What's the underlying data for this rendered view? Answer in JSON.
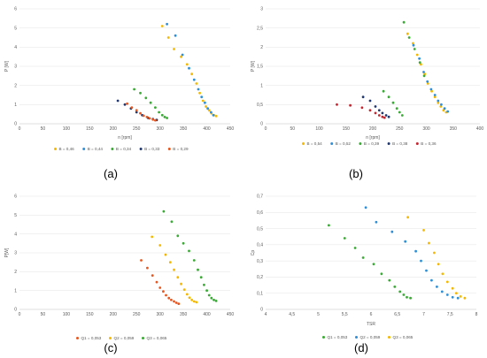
{
  "chart_data": [
    {
      "type": "scatter",
      "panel_label": "(a)",
      "xlabel": "n [rpm]",
      "ylabel": "P [W]",
      "xlim": [
        0,
        450
      ],
      "ylim": [
        0,
        6
      ],
      "x_ticks": [
        "0",
        "50",
        "100",
        "150",
        "200",
        "250",
        "300",
        "350",
        "400",
        "450"
      ],
      "y_ticks": [
        "0",
        "1",
        "2",
        "3",
        "4",
        "5",
        "6"
      ],
      "grid": "horizontal",
      "legend": "bottom",
      "series": [
        {
          "name": "B = 0,46",
          "color": "#f5b800",
          "points": [
            [
              305,
              5.1
            ],
            [
              318,
              4.5
            ],
            [
              330,
              3.9
            ],
            [
              345,
              3.5
            ],
            [
              358,
              3.1
            ],
            [
              368,
              2.6
            ],
            [
              378,
              2.1
            ],
            [
              385,
              1.6
            ],
            [
              392,
              1.2
            ],
            [
              398,
              0.9
            ],
            [
              405,
              0.7
            ],
            [
              410,
              0.55
            ],
            [
              415,
              0.45
            ],
            [
              420,
              0.4
            ]
          ]
        },
        {
          "name": "B = 0,44",
          "color": "#2e8fd6",
          "points": [
            [
              315,
              5.2
            ],
            [
              333,
              4.6
            ],
            [
              348,
              3.6
            ],
            [
              362,
              2.9
            ],
            [
              373,
              2.3
            ],
            [
              382,
              1.8
            ],
            [
              389,
              1.4
            ],
            [
              396,
              1.1
            ],
            [
              402,
              0.8
            ],
            [
              409,
              0.6
            ],
            [
              414,
              0.45
            ]
          ]
        },
        {
          "name": "B = 0,34",
          "color": "#3aa935",
          "points": [
            [
              245,
              1.8
            ],
            [
              258,
              1.6
            ],
            [
              270,
              1.35
            ],
            [
              280,
              1.1
            ],
            [
              290,
              0.85
            ],
            [
              298,
              0.6
            ],
            [
              305,
              0.45
            ],
            [
              310,
              0.35
            ],
            [
              315,
              0.3
            ]
          ]
        },
        {
          "name": "B = 0,33",
          "color": "#20386f",
          "points": [
            [
              210,
              1.2
            ],
            [
              225,
              1.0
            ],
            [
              238,
              0.8
            ],
            [
              250,
              0.6
            ],
            [
              262,
              0.45
            ],
            [
              275,
              0.3
            ],
            [
              285,
              0.25
            ],
            [
              293,
              0.2
            ]
          ]
        },
        {
          "name": "B = 0,29",
          "color": "#e8561f",
          "points": [
            [
              230,
              1.05
            ],
            [
              240,
              0.85
            ],
            [
              250,
              0.7
            ],
            [
              258,
              0.55
            ],
            [
              265,
              0.42
            ],
            [
              272,
              0.35
            ],
            [
              278,
              0.28
            ],
            [
              285,
              0.22
            ],
            [
              290,
              0.18
            ]
          ]
        }
      ]
    },
    {
      "type": "scatter",
      "panel_label": "(b)",
      "xlabel": "n [rpm]",
      "ylabel": "P [W]",
      "xlim": [
        0,
        400
      ],
      "ylim": [
        0,
        3
      ],
      "x_ticks": [
        "0",
        "50",
        "100",
        "150",
        "200",
        "250",
        "300",
        "350",
        "400"
      ],
      "y_ticks": [
        "0",
        "0,5",
        "1",
        "1,5",
        "2",
        "2,5",
        "3"
      ],
      "grid": "horizontal",
      "legend": "bottom",
      "series": [
        {
          "name": "B = 0,54",
          "color": "#f5b800",
          "points": [
            [
              265,
              2.35
            ],
            [
              275,
              2.1
            ],
            [
              283,
              1.8
            ],
            [
              290,
              1.55
            ],
            [
              297,
              1.3
            ],
            [
              303,
              1.05
            ],
            [
              310,
              0.85
            ],
            [
              316,
              0.7
            ],
            [
              322,
              0.55
            ],
            [
              327,
              0.45
            ],
            [
              332,
              0.35
            ],
            [
              337,
              0.3
            ]
          ]
        },
        {
          "name": "B = 0,52",
          "color": "#2e8fd6",
          "points": [
            [
              276,
              2.05
            ],
            [
              287,
              1.7
            ],
            [
              295,
              1.35
            ],
            [
              302,
              1.1
            ],
            [
              309,
              0.9
            ],
            [
              316,
              0.75
            ],
            [
              322,
              0.6
            ],
            [
              328,
              0.5
            ],
            [
              334,
              0.4
            ],
            [
              340,
              0.32
            ]
          ]
        },
        {
          "name": "B = 0,39",
          "color": "#3aa935",
          "points": [
            [
              258,
              2.65
            ],
            [
              268,
              2.25
            ],
            [
              278,
              1.95
            ],
            [
              288,
              1.6
            ],
            [
              296,
              1.25
            ],
            [
              220,
              0.85
            ],
            [
              230,
              0.7
            ],
            [
              238,
              0.55
            ],
            [
              245,
              0.4
            ],
            [
              250,
              0.3
            ],
            [
              255,
              0.22
            ]
          ]
        },
        {
          "name": "B = 0,38",
          "color": "#20386f",
          "points": [
            [
              182,
              0.7
            ],
            [
              195,
              0.6
            ],
            [
              205,
              0.45
            ],
            [
              212,
              0.35
            ],
            [
              218,
              0.28
            ],
            [
              225,
              0.22
            ],
            [
              230,
              0.18
            ]
          ]
        },
        {
          "name": "B = 0,36",
          "color": "#c3262e",
          "points": [
            [
              133,
              0.5
            ],
            [
              158,
              0.48
            ],
            [
              180,
              0.42
            ],
            [
              195,
              0.35
            ],
            [
              205,
              0.28
            ],
            [
              212,
              0.22
            ],
            [
              218,
              0.18
            ],
            [
              222,
              0.16
            ]
          ]
        }
      ]
    },
    {
      "type": "scatter",
      "panel_label": "(c)",
      "xlabel": "",
      "ylabel": "P[W]",
      "xlim": [
        0,
        450
      ],
      "ylim": [
        0,
        6
      ],
      "x_ticks": [
        "0",
        "50",
        "100",
        "150",
        "200",
        "250",
        "300",
        "350",
        "400",
        "450"
      ],
      "y_ticks": [
        "0",
        "1",
        "2",
        "3",
        "4",
        "5",
        "6"
      ],
      "grid": "horizontal",
      "legend": "bottom",
      "series": [
        {
          "name": "Q1 = 0,053",
          "color": "#e8561f",
          "points": [
            [
              260,
              2.6
            ],
            [
              273,
              2.2
            ],
            [
              284,
              1.8
            ],
            [
              293,
              1.45
            ],
            [
              300,
              1.15
            ],
            [
              307,
              0.95
            ],
            [
              313,
              0.75
            ],
            [
              319,
              0.6
            ],
            [
              324,
              0.5
            ],
            [
              330,
              0.42
            ],
            [
              335,
              0.35
            ],
            [
              340,
              0.3
            ]
          ]
        },
        {
          "name": "Q2 = 0,059",
          "color": "#f5b800",
          "points": [
            [
              283,
              3.85
            ],
            [
              300,
              3.4
            ],
            [
              312,
              2.9
            ],
            [
              322,
              2.5
            ],
            [
              330,
              2.1
            ],
            [
              338,
              1.7
            ],
            [
              345,
              1.35
            ],
            [
              352,
              1.05
            ],
            [
              358,
              0.8
            ],
            [
              363,
              0.62
            ],
            [
              368,
              0.5
            ],
            [
              373,
              0.42
            ],
            [
              378,
              0.38
            ]
          ]
        },
        {
          "name": "Q3 = 0,065",
          "color": "#3aa935",
          "points": [
            [
              308,
              5.2
            ],
            [
              325,
              4.65
            ],
            [
              338,
              3.9
            ],
            [
              350,
              3.5
            ],
            [
              362,
              3.1
            ],
            [
              373,
              2.6
            ],
            [
              381,
              2.1
            ],
            [
              388,
              1.7
            ],
            [
              394,
              1.3
            ],
            [
              400,
              1.0
            ],
            [
              405,
              0.75
            ],
            [
              410,
              0.6
            ],
            [
              415,
              0.5
            ],
            [
              420,
              0.45
            ]
          ]
        }
      ]
    },
    {
      "type": "scatter",
      "panel_label": "(d)",
      "xlabel": "TSR",
      "ylabel": "Cp",
      "xlim": [
        4,
        8
      ],
      "ylim": [
        0,
        0.7
      ],
      "x_ticks": [
        "4",
        "4,5",
        "5",
        "5,5",
        "6",
        "6,5",
        "7",
        "7,5",
        "8"
      ],
      "y_ticks": [
        "0",
        "0,1",
        "0,2",
        "0,3",
        "0,4",
        "0,5",
        "0,6",
        "0,7"
      ],
      "grid": "horizontal",
      "legend": "bottom",
      "series": [
        {
          "name": "Q1 = 0,053",
          "color": "#3aa935",
          "points": [
            [
              5.2,
              0.52
            ],
            [
              5.5,
              0.44
            ],
            [
              5.7,
              0.38
            ],
            [
              5.85,
              0.32
            ],
            [
              6.05,
              0.28
            ],
            [
              6.2,
              0.22
            ],
            [
              6.35,
              0.18
            ],
            [
              6.45,
              0.14
            ],
            [
              6.55,
              0.11
            ],
            [
              6.62,
              0.09
            ],
            [
              6.68,
              0.075
            ],
            [
              6.75,
              0.07
            ]
          ]
        },
        {
          "name": "Q2 = 0,059",
          "color": "#2e8fd6",
          "points": [
            [
              5.9,
              0.63
            ],
            [
              6.1,
              0.54
            ],
            [
              6.4,
              0.48
            ],
            [
              6.65,
              0.42
            ],
            [
              6.85,
              0.36
            ],
            [
              6.95,
              0.3
            ],
            [
              7.05,
              0.24
            ],
            [
              7.15,
              0.18
            ],
            [
              7.25,
              0.14
            ],
            [
              7.35,
              0.11
            ],
            [
              7.45,
              0.09
            ],
            [
              7.55,
              0.075
            ],
            [
              7.65,
              0.07
            ]
          ]
        },
        {
          "name": "Q3 = 0,065",
          "color": "#f5b800",
          "points": [
            [
              6.7,
              0.57
            ],
            [
              7.0,
              0.49
            ],
            [
              7.1,
              0.41
            ],
            [
              7.2,
              0.35
            ],
            [
              7.28,
              0.28
            ],
            [
              7.36,
              0.22
            ],
            [
              7.45,
              0.17
            ],
            [
              7.55,
              0.13
            ],
            [
              7.62,
              0.1
            ],
            [
              7.7,
              0.08
            ],
            [
              7.78,
              0.07
            ]
          ]
        }
      ]
    }
  ]
}
